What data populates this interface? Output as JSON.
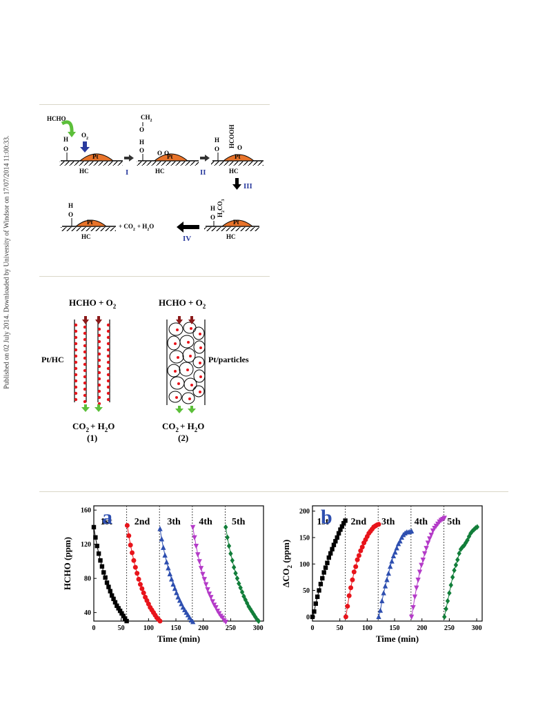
{
  "side_note": "Published on 02 July 2014. Downloaded by University of Windsor on 17/07/2014 11:00:33.",
  "scheme1": {
    "formaldehyde": "HCHO",
    "o2": "O",
    "o2_sub": "2",
    "pt": "Pt",
    "hc": "HC",
    "hydroxyl_o": "O",
    "hydroxyl_h": "H",
    "ch2": "CH",
    "ch2_sub": "2",
    "hcooh": "HCOOH",
    "h2co3_prefix": "H",
    "h2co3_sub1": "2",
    "h2co3_mid": "CO",
    "h2co3_sub2": "3",
    "products": "+ CO",
    "products_sub": "2",
    "products_tail": "+ H",
    "products_sub2": "2",
    "products_end": "O",
    "steps": [
      "I",
      "II",
      "III",
      "IV"
    ]
  },
  "scheme2": {
    "reactants": "HCHO + O",
    "reactants_sub": "2",
    "label_left": "Pt/HC",
    "label_right": "Pt/particles",
    "products": "CO",
    "products_sub": "2",
    "products_tail": "+ H",
    "products_sub2": "2",
    "products_end": "O",
    "index1": "(1)",
    "index2": "(2)"
  },
  "colors": {
    "pt": "#e8732a",
    "step_blue": "#2a3b9e",
    "cycle": [
      "#000000",
      "#e8141b",
      "#2e4fb0",
      "#b43bc8",
      "#127e3a"
    ],
    "arrow_dark": "#8b1a1a",
    "arrow_green": "#5cbf3a"
  },
  "chart_data": [
    {
      "type": "scatter",
      "panel_label": "a",
      "xlabel": "Time (min)",
      "ylabel": "HCHO (ppm)",
      "xlim": [
        0,
        310
      ],
      "ylim": [
        30,
        165
      ],
      "xticks": [
        0,
        50,
        100,
        150,
        200,
        250,
        300
      ],
      "yticks": [
        40,
        80,
        120,
        160
      ],
      "dividers": [
        60,
        120,
        180,
        240
      ],
      "series": [
        {
          "name": "1st",
          "marker": "square",
          "x": [
            0,
            3,
            6,
            9,
            12,
            15,
            18,
            21,
            24,
            27,
            30,
            33,
            36,
            39,
            42,
            45,
            48,
            51,
            54,
            57,
            60
          ],
          "y": [
            140,
            128,
            118,
            109,
            101,
            94,
            87,
            81,
            75,
            70,
            65,
            60,
            56,
            52,
            48,
            45,
            42,
            39,
            36,
            33,
            30
          ]
        },
        {
          "name": "2nd",
          "marker": "circle",
          "x": [
            61,
            64,
            67,
            70,
            73,
            76,
            79,
            82,
            85,
            88,
            91,
            94,
            97,
            100,
            103,
            106,
            109,
            112,
            115,
            118,
            121
          ],
          "y": [
            142,
            130,
            119,
            110,
            101,
            93,
            86,
            79,
            73,
            68,
            63,
            58,
            54,
            50,
            46,
            43,
            40,
            37,
            34,
            32,
            30
          ]
        },
        {
          "name": "3th",
          "marker": "triangle-up",
          "x": [
            121,
            124,
            127,
            130,
            133,
            136,
            139,
            142,
            145,
            148,
            151,
            154,
            157,
            160,
            163,
            166,
            169,
            172,
            175,
            178,
            181
          ],
          "y": [
            138,
            126,
            116,
            107,
            99,
            92,
            85,
            79,
            73,
            68,
            63,
            58,
            54,
            50,
            46,
            43,
            40,
            37,
            34,
            31,
            29
          ]
        },
        {
          "name": "4th",
          "marker": "triangle-down",
          "x": [
            181,
            184,
            187,
            190,
            193,
            196,
            199,
            202,
            205,
            208,
            211,
            214,
            217,
            220,
            223,
            226,
            229,
            232,
            235,
            238,
            241
          ],
          "y": [
            140,
            128,
            118,
            108,
            100,
            92,
            85,
            79,
            73,
            67,
            62,
            58,
            53,
            49,
            46,
            42,
            39,
            36,
            34,
            31,
            29
          ]
        },
        {
          "name": "5th",
          "marker": "diamond",
          "x": [
            241,
            244,
            247,
            250,
            253,
            256,
            259,
            262,
            265,
            268,
            271,
            274,
            277,
            280,
            283,
            286,
            289,
            292,
            295,
            298,
            301
          ],
          "y": [
            140,
            128,
            118,
            109,
            101,
            93,
            86,
            80,
            74,
            69,
            64,
            59,
            55,
            51,
            47,
            44,
            41,
            38,
            35,
            32,
            30
          ]
        }
      ]
    },
    {
      "type": "scatter",
      "panel_label": "b",
      "xlabel": "Time (min)",
      "ylabel": "ΔCO",
      "ylabel_sub": "2",
      "ylabel_tail": " (ppm)",
      "xlim": [
        0,
        310
      ],
      "ylim": [
        -8,
        210
      ],
      "xticks": [
        0,
        50,
        100,
        150,
        200,
        250,
        300
      ],
      "yticks": [
        0,
        50,
        100,
        150,
        200
      ],
      "dividers": [
        60,
        120,
        180,
        240
      ],
      "series": [
        {
          "name": "1st",
          "marker": "square",
          "x": [
            0,
            3,
            6,
            9,
            12,
            15,
            18,
            21,
            24,
            27,
            30,
            33,
            36,
            39,
            42,
            45,
            48,
            51,
            54,
            57,
            60
          ],
          "y": [
            0,
            10,
            25,
            38,
            50,
            62,
            73,
            84,
            93,
            102,
            112,
            120,
            128,
            136,
            143,
            150,
            158,
            165,
            171,
            177,
            182
          ]
        },
        {
          "name": "2nd",
          "marker": "circle",
          "x": [
            61,
            64,
            67,
            70,
            73,
            76,
            79,
            82,
            85,
            88,
            91,
            94,
            97,
            100,
            103,
            106,
            109,
            112,
            115,
            118,
            121
          ],
          "y": [
            0,
            20,
            40,
            55,
            70,
            85,
            95,
            108,
            116,
            125,
            132,
            140,
            146,
            152,
            158,
            162,
            166,
            170,
            172,
            174,
            175
          ]
        },
        {
          "name": "3th",
          "marker": "triangle-up",
          "x": [
            121,
            124,
            127,
            130,
            133,
            136,
            139,
            142,
            145,
            148,
            151,
            154,
            157,
            160,
            163,
            166,
            169,
            172,
            175,
            178,
            181
          ],
          "y": [
            0,
            12,
            30,
            45,
            58,
            70,
            82,
            95,
            105,
            115,
            122,
            130,
            138,
            143,
            150,
            155,
            158,
            160,
            160,
            161,
            162
          ]
        },
        {
          "name": "4th",
          "marker": "triangle-down",
          "x": [
            181,
            184,
            187,
            190,
            193,
            196,
            199,
            202,
            205,
            208,
            211,
            214,
            217,
            220,
            223,
            226,
            229,
            232,
            235,
            238,
            241
          ],
          "y": [
            0,
            18,
            38,
            55,
            70,
            85,
            98,
            108,
            120,
            130,
            140,
            148,
            155,
            163,
            168,
            172,
            176,
            180,
            183,
            185,
            187
          ]
        },
        {
          "name": "5th",
          "marker": "diamond",
          "x": [
            241,
            244,
            247,
            250,
            253,
            256,
            259,
            262,
            265,
            268,
            271,
            274,
            277,
            280,
            283,
            286,
            289,
            292,
            295,
            298,
            301
          ],
          "y": [
            0,
            15,
            30,
            45,
            60,
            75,
            88,
            98,
            108,
            120,
            128,
            132,
            135,
            140,
            145,
            152,
            158,
            162,
            165,
            168,
            170
          ]
        }
      ]
    }
  ]
}
